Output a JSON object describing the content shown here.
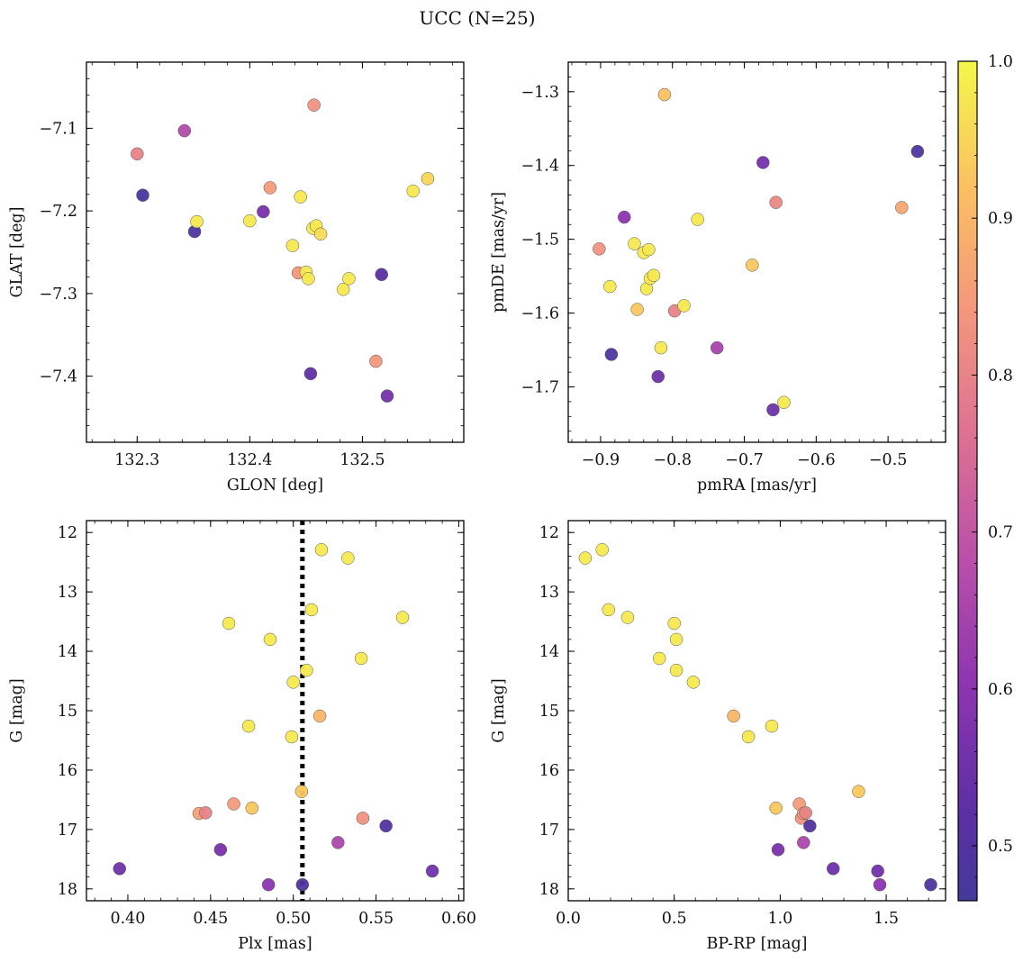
{
  "title": "UCC (N=25)",
  "colorbar": {
    "min": 0.465,
    "max": 1.0,
    "ticks": [
      0.5,
      0.6,
      0.7,
      0.8,
      0.9,
      1.0
    ],
    "tick_labels": [
      "0.5",
      "0.6",
      "0.7",
      "0.8",
      "0.9",
      "1.0"
    ]
  },
  "chart_data": [
    {
      "id": "glon-glat",
      "type": "scatter",
      "xlabel": "GLON [deg]",
      "ylabel": "GLAT [deg]",
      "xlim": [
        132.255,
        132.59
      ],
      "ylim": [
        -7.48,
        -7.02
      ],
      "y_inverted": false,
      "xticks": [
        132.3,
        132.4,
        132.5
      ],
      "xtick_labels": [
        "132.3",
        "132.4",
        "132.5"
      ],
      "yticks": [
        -7.1,
        -7.2,
        -7.3,
        -7.4
      ],
      "ytick_labels": [
        "−7.1",
        "−7.2",
        "−7.3",
        "−7.4"
      ],
      "points": [
        {
          "x": 132.3,
          "y": -7.131,
          "c": 0.8
        },
        {
          "x": 132.305,
          "y": -7.181,
          "c": 0.48
        },
        {
          "x": 132.342,
          "y": -7.103,
          "c": 0.67
        },
        {
          "x": 132.351,
          "y": -7.225,
          "c": 0.49
        },
        {
          "x": 132.353,
          "y": -7.213,
          "c": 0.98
        },
        {
          "x": 132.4,
          "y": -7.212,
          "c": 0.98
        },
        {
          "x": 132.412,
          "y": -7.201,
          "c": 0.57
        },
        {
          "x": 132.418,
          "y": -7.172,
          "c": 0.85
        },
        {
          "x": 132.438,
          "y": -7.242,
          "c": 0.98
        },
        {
          "x": 132.443,
          "y": -7.275,
          "c": 0.84
        },
        {
          "x": 132.445,
          "y": -7.183,
          "c": 0.98
        },
        {
          "x": 132.45,
          "y": -7.274,
          "c": 0.98
        },
        {
          "x": 132.452,
          "y": -7.282,
          "c": 0.98
        },
        {
          "x": 132.454,
          "y": -7.397,
          "c": 0.53
        },
        {
          "x": 132.456,
          "y": -7.221,
          "c": 0.98
        },
        {
          "x": 132.457,
          "y": -7.072,
          "c": 0.83
        },
        {
          "x": 132.459,
          "y": -7.218,
          "c": 0.98
        },
        {
          "x": 132.463,
          "y": -7.228,
          "c": 0.96
        },
        {
          "x": 132.483,
          "y": -7.295,
          "c": 0.98
        },
        {
          "x": 132.488,
          "y": -7.282,
          "c": 0.98
        },
        {
          "x": 132.512,
          "y": -7.382,
          "c": 0.84
        },
        {
          "x": 132.517,
          "y": -7.277,
          "c": 0.52
        },
        {
          "x": 132.522,
          "y": -7.424,
          "c": 0.56
        },
        {
          "x": 132.545,
          "y": -7.176,
          "c": 0.98
        },
        {
          "x": 132.558,
          "y": -7.161,
          "c": 0.95
        }
      ]
    },
    {
      "id": "pmra-pmde",
      "type": "scatter",
      "xlabel": "pmRA [mas/yr]",
      "ylabel": "pmDE [mas/yr]",
      "xlim": [
        -0.945,
        -0.42
      ],
      "ylim": [
        -1.775,
        -1.26
      ],
      "y_inverted": false,
      "xticks": [
        -0.9,
        -0.8,
        -0.7,
        -0.6,
        -0.5
      ],
      "xtick_labels": [
        "−0.9",
        "−0.8",
        "−0.7",
        "−0.6",
        "−0.5"
      ],
      "yticks": [
        -1.3,
        -1.4,
        -1.5,
        -1.6,
        -1.7
      ],
      "ytick_labels": [
        "−1.3",
        "−1.4",
        "−1.5",
        "−1.6",
        "−1.7"
      ],
      "points": [
        {
          "x": -0.902,
          "y": -1.513,
          "c": 0.83
        },
        {
          "x": -0.887,
          "y": -1.564,
          "c": 0.98
        },
        {
          "x": -0.885,
          "y": -1.656,
          "c": 0.49
        },
        {
          "x": -0.867,
          "y": -1.47,
          "c": 0.6
        },
        {
          "x": -0.853,
          "y": -1.506,
          "c": 0.98
        },
        {
          "x": -0.849,
          "y": -1.595,
          "c": 0.93
        },
        {
          "x": -0.84,
          "y": -1.518,
          "c": 0.98
        },
        {
          "x": -0.836,
          "y": -1.567,
          "c": 0.98
        },
        {
          "x": -0.833,
          "y": -1.514,
          "c": 0.98
        },
        {
          "x": -0.831,
          "y": -1.553,
          "c": 0.98
        },
        {
          "x": -0.826,
          "y": -1.549,
          "c": 0.98
        },
        {
          "x": -0.82,
          "y": -1.686,
          "c": 0.55
        },
        {
          "x": -0.816,
          "y": -1.647,
          "c": 0.98
        },
        {
          "x": -0.811,
          "y": -1.304,
          "c": 0.92
        },
        {
          "x": -0.797,
          "y": -1.597,
          "c": 0.8
        },
        {
          "x": -0.784,
          "y": -1.59,
          "c": 0.98
        },
        {
          "x": -0.765,
          "y": -1.473,
          "c": 0.98
        },
        {
          "x": -0.738,
          "y": -1.647,
          "c": 0.65
        },
        {
          "x": -0.689,
          "y": -1.535,
          "c": 0.93
        },
        {
          "x": -0.674,
          "y": -1.396,
          "c": 0.56
        },
        {
          "x": -0.66,
          "y": -1.731,
          "c": 0.55
        },
        {
          "x": -0.656,
          "y": -1.45,
          "c": 0.81
        },
        {
          "x": -0.645,
          "y": -1.721,
          "c": 0.98
        },
        {
          "x": -0.481,
          "y": -1.457,
          "c": 0.87
        },
        {
          "x": -0.459,
          "y": -1.381,
          "c": 0.49
        }
      ]
    },
    {
      "id": "plx-g",
      "type": "scatter",
      "xlabel": "Plx [mas]",
      "ylabel": "G [mag]",
      "xlim": [
        0.375,
        0.603
      ],
      "ylim": [
        11.8,
        18.2
      ],
      "y_inverted": true,
      "xticks": [
        0.4,
        0.45,
        0.5,
        0.55,
        0.6
      ],
      "xtick_labels": [
        "0.40",
        "0.45",
        "0.50",
        "0.55",
        "0.60"
      ],
      "yticks": [
        12,
        13,
        14,
        15,
        16,
        17,
        18
      ],
      "ytick_labels": [
        "12",
        "13",
        "14",
        "15",
        "16",
        "17",
        "18"
      ],
      "vline": 0.5055,
      "points": [
        {
          "x": 0.395,
          "y": 17.66,
          "c": 0.55
        },
        {
          "x": 0.443,
          "y": 16.73,
          "c": 0.86
        },
        {
          "x": 0.447,
          "y": 16.72,
          "c": 0.8
        },
        {
          "x": 0.456,
          "y": 17.34,
          "c": 0.57
        },
        {
          "x": 0.461,
          "y": 13.53,
          "c": 0.98
        },
        {
          "x": 0.464,
          "y": 16.57,
          "c": 0.85
        },
        {
          "x": 0.473,
          "y": 15.26,
          "c": 0.98
        },
        {
          "x": 0.475,
          "y": 16.64,
          "c": 0.93
        },
        {
          "x": 0.485,
          "y": 17.93,
          "c": 0.6
        },
        {
          "x": 0.486,
          "y": 13.8,
          "c": 0.98
        },
        {
          "x": 0.499,
          "y": 15.44,
          "c": 0.98
        },
        {
          "x": 0.5,
          "y": 14.52,
          "c": 0.98
        },
        {
          "x": 0.505,
          "y": 16.36,
          "c": 0.93
        },
        {
          "x": 0.5055,
          "y": 17.93,
          "c": 0.49
        },
        {
          "x": 0.508,
          "y": 14.32,
          "c": 0.98
        },
        {
          "x": 0.511,
          "y": 13.3,
          "c": 0.98
        },
        {
          "x": 0.516,
          "y": 15.09,
          "c": 0.9
        },
        {
          "x": 0.517,
          "y": 12.29,
          "c": 0.98
        },
        {
          "x": 0.527,
          "y": 17.22,
          "c": 0.66
        },
        {
          "x": 0.533,
          "y": 12.43,
          "c": 0.98
        },
        {
          "x": 0.541,
          "y": 14.12,
          "c": 0.98
        },
        {
          "x": 0.542,
          "y": 16.81,
          "c": 0.83
        },
        {
          "x": 0.556,
          "y": 16.94,
          "c": 0.5
        },
        {
          "x": 0.566,
          "y": 13.43,
          "c": 0.98
        },
        {
          "x": 0.584,
          "y": 17.7,
          "c": 0.56
        }
      ]
    },
    {
      "id": "bprp-g",
      "type": "scatter",
      "xlabel": "BP-RP [mag]",
      "ylabel": "G [mag]",
      "xlim": [
        0.0,
        1.78
      ],
      "ylim": [
        11.8,
        18.2
      ],
      "y_inverted": true,
      "xticks": [
        0.0,
        0.5,
        1.0,
        1.5
      ],
      "xtick_labels": [
        "0.0",
        "0.5",
        "1.0",
        "1.5"
      ],
      "yticks": [
        12,
        13,
        14,
        15,
        16,
        17,
        18
      ],
      "ytick_labels": [
        "12",
        "13",
        "14",
        "15",
        "16",
        "17",
        "18"
      ],
      "points": [
        {
          "x": 0.08,
          "y": 12.43,
          "c": 0.98
        },
        {
          "x": 0.16,
          "y": 12.29,
          "c": 0.98
        },
        {
          "x": 0.19,
          "y": 13.3,
          "c": 0.98
        },
        {
          "x": 0.28,
          "y": 13.43,
          "c": 0.98
        },
        {
          "x": 0.43,
          "y": 14.12,
          "c": 0.98
        },
        {
          "x": 0.5,
          "y": 13.53,
          "c": 0.98
        },
        {
          "x": 0.51,
          "y": 13.8,
          "c": 0.98
        },
        {
          "x": 0.51,
          "y": 14.32,
          "c": 0.98
        },
        {
          "x": 0.59,
          "y": 14.52,
          "c": 0.98
        },
        {
          "x": 0.78,
          "y": 15.09,
          "c": 0.9
        },
        {
          "x": 0.85,
          "y": 15.44,
          "c": 0.98
        },
        {
          "x": 0.96,
          "y": 15.26,
          "c": 0.98
        },
        {
          "x": 0.98,
          "y": 16.64,
          "c": 0.93
        },
        {
          "x": 0.99,
          "y": 17.34,
          "c": 0.57
        },
        {
          "x": 1.09,
          "y": 16.57,
          "c": 0.85
        },
        {
          "x": 1.1,
          "y": 16.81,
          "c": 0.83
        },
        {
          "x": 1.11,
          "y": 16.73,
          "c": 0.86
        },
        {
          "x": 1.12,
          "y": 16.72,
          "c": 0.8
        },
        {
          "x": 1.11,
          "y": 17.22,
          "c": 0.66
        },
        {
          "x": 1.14,
          "y": 16.94,
          "c": 0.5
        },
        {
          "x": 1.25,
          "y": 17.66,
          "c": 0.55
        },
        {
          "x": 1.37,
          "y": 16.36,
          "c": 0.93
        },
        {
          "x": 1.46,
          "y": 17.7,
          "c": 0.56
        },
        {
          "x": 1.47,
          "y": 17.93,
          "c": 0.6
        },
        {
          "x": 1.71,
          "y": 17.93,
          "c": 0.49
        }
      ]
    }
  ]
}
